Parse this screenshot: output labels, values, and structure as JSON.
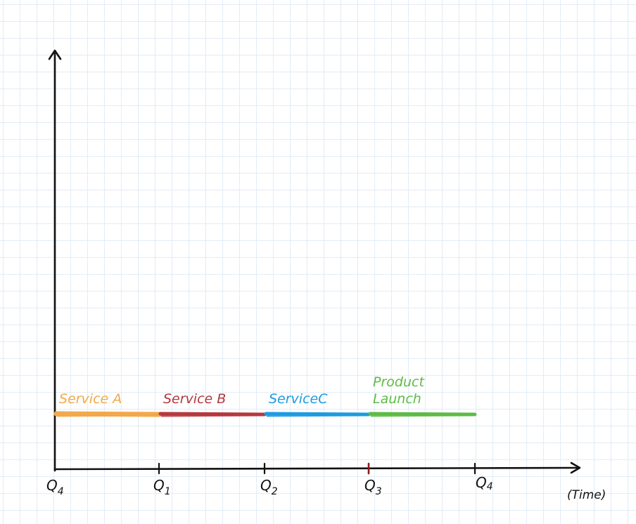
{
  "axis": {
    "x_title": "(Time)",
    "ticks": [
      {
        "letter": "Q",
        "sub": "4"
      },
      {
        "letter": "Q",
        "sub": "1"
      },
      {
        "letter": "Q",
        "sub": "2"
      },
      {
        "letter": "Q",
        "sub": "3"
      },
      {
        "letter": "Q",
        "sub": "4"
      }
    ]
  },
  "segments": [
    {
      "label_lines": [
        "Service A"
      ],
      "color": "#f2a94a",
      "start": 0,
      "end": 1
    },
    {
      "label_lines": [
        "Service B"
      ],
      "color": "#b5393e",
      "start": 1,
      "end": 2
    },
    {
      "label_lines": [
        "ServiceC"
      ],
      "color": "#1e9be0",
      "start": 2,
      "end": 3
    },
    {
      "label_lines": [
        "Product",
        "Launch"
      ],
      "color": "#5dbb46",
      "start": 3,
      "end": 4
    }
  ]
}
